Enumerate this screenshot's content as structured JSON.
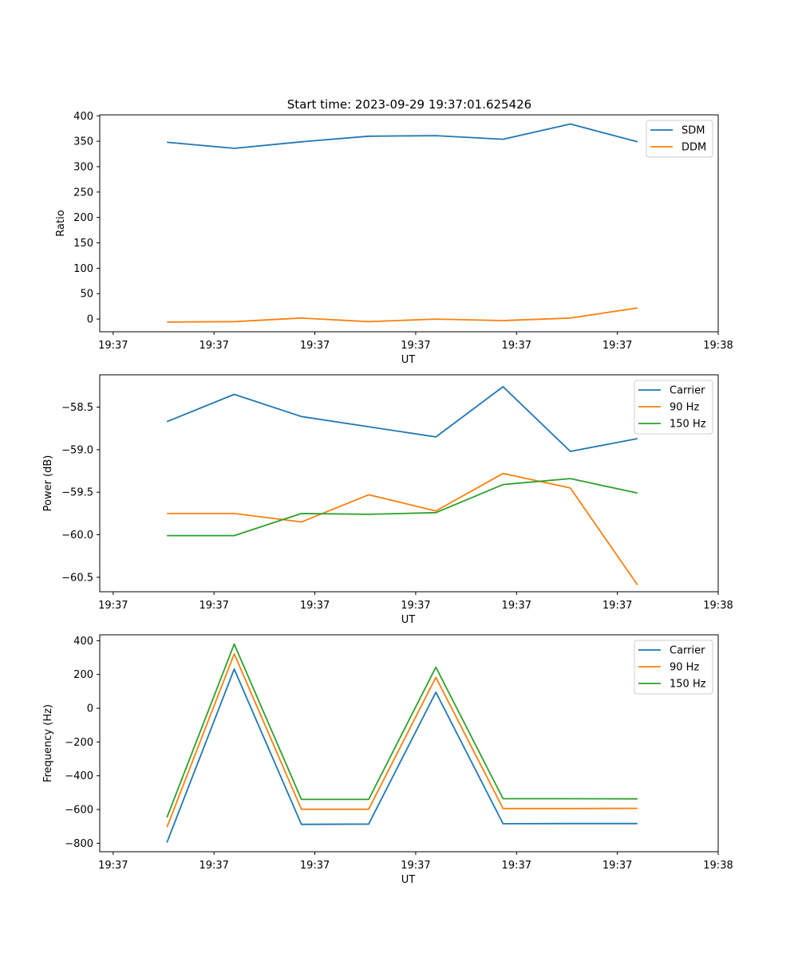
{
  "figure_title": "Start time: 2023-09-29 19:37:01.625426",
  "colors": {
    "blue": "#1f77b4",
    "orange": "#ff7f0e",
    "green": "#2ca02c"
  },
  "chart_data": [
    {
      "type": "line",
      "title": "Start time: 2023-09-29 19:37:01.625426",
      "xlabel": "UT",
      "ylabel": "Ratio",
      "x": [
        1,
        2,
        3,
        4,
        5,
        6,
        7,
        8
      ],
      "xlim": [
        0,
        9.2
      ],
      "xticks": [
        0.2,
        1.7,
        3.2,
        4.7,
        6.2,
        7.7,
        9.2
      ],
      "xticklabels": [
        "19:37",
        "19:37",
        "19:37",
        "19:37",
        "19:37",
        "19:37",
        "19:38"
      ],
      "ylim": [
        -25,
        402
      ],
      "yticks": [
        0,
        50,
        100,
        150,
        200,
        250,
        300,
        350,
        400
      ],
      "yticklabels": [
        "0",
        "50",
        "100",
        "150",
        "200",
        "250",
        "300",
        "350",
        "400"
      ],
      "legend": "top-right",
      "series": [
        {
          "name": "SDM",
          "color": "#1f77b4",
          "values": [
            348,
            336,
            349,
            360,
            361,
            354,
            384,
            349
          ]
        },
        {
          "name": "DDM",
          "color": "#ff7f0e",
          "values": [
            -6,
            -5,
            2,
            -5,
            0,
            -3,
            2,
            22
          ]
        }
      ]
    },
    {
      "type": "line",
      "title": "",
      "xlabel": "UT",
      "ylabel": "Power (dB)",
      "x": [
        1,
        2,
        3,
        4,
        5,
        6,
        7,
        8
      ],
      "xlim": [
        0,
        9.2
      ],
      "xticks": [
        0.2,
        1.7,
        3.2,
        4.7,
        6.2,
        7.7,
        9.2
      ],
      "xticklabels": [
        "19:37",
        "19:37",
        "19:37",
        "19:37",
        "19:37",
        "19:37",
        "19:38"
      ],
      "ylim": [
        -60.67,
        -58.12
      ],
      "yticks": [
        -60.5,
        -60.0,
        -59.5,
        -59.0,
        -58.5
      ],
      "yticklabels": [
        "−60.5",
        "−60.0",
        "−59.5",
        "−59.0",
        "−58.5"
      ],
      "legend": "top-right",
      "series": [
        {
          "name": "Carrier",
          "color": "#1f77b4",
          "values": [
            -58.67,
            -58.35,
            -58.61,
            -58.73,
            -58.85,
            -58.26,
            -59.02,
            -58.87
          ]
        },
        {
          "name": "90 Hz",
          "color": "#ff7f0e",
          "values": [
            -59.75,
            -59.75,
            -59.85,
            -59.53,
            -59.72,
            -59.28,
            -59.45,
            -60.59
          ]
        },
        {
          "name": "150 Hz",
          "color": "#2ca02c",
          "values": [
            -60.01,
            -60.01,
            -59.75,
            -59.76,
            -59.74,
            -59.41,
            -59.34,
            -59.51
          ]
        }
      ]
    },
    {
      "type": "line",
      "title": "",
      "xlabel": "UT",
      "ylabel": "Frequency (Hz)",
      "x": [
        1,
        2,
        3,
        4,
        5,
        6,
        7,
        8
      ],
      "xlim": [
        0,
        9.2
      ],
      "xticks": [
        0.2,
        1.7,
        3.2,
        4.7,
        6.2,
        7.7,
        9.2
      ],
      "xticklabels": [
        "19:37",
        "19:37",
        "19:37",
        "19:37",
        "19:37",
        "19:37",
        "19:38"
      ],
      "ylim": [
        -850,
        435
      ],
      "yticks": [
        -800,
        -600,
        -400,
        -200,
        0,
        200,
        400
      ],
      "yticklabels": [
        "−800",
        "−600",
        "−400",
        "−200",
        "0",
        "200",
        "400"
      ],
      "legend": "top-right",
      "series": [
        {
          "name": "Carrier",
          "color": "#1f77b4",
          "values": [
            -795,
            232,
            -688,
            -686,
            95,
            -684,
            -683,
            -683
          ]
        },
        {
          "name": "90 Hz",
          "color": "#ff7f0e",
          "values": [
            -705,
            322,
            -598,
            -598,
            183,
            -594,
            -594,
            -593
          ]
        },
        {
          "name": "150 Hz",
          "color": "#2ca02c",
          "values": [
            -647,
            380,
            -540,
            -540,
            243,
            -536,
            -536,
            -537
          ]
        }
      ]
    }
  ]
}
